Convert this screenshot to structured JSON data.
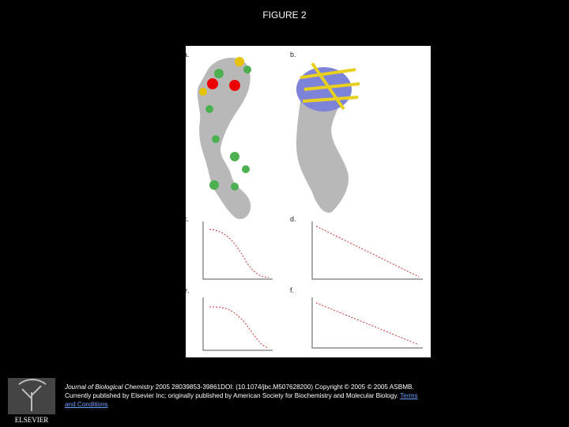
{
  "title": "FIGURE 2",
  "figure": {
    "panels": [
      {
        "label": "a."
      },
      {
        "label": "b."
      },
      {
        "label": "c."
      },
      {
        "label": "d."
      },
      {
        "label": "e."
      },
      {
        "label": "f."
      }
    ]
  },
  "footer": {
    "journal": "Journal of Biological Chemistry",
    "citation": " 2005 28039853-39861DOI: (10.1074/jbc.M507628200)",
    "copyright": " Copyright © 2005 © 2005 ASBMB. Currently published by Elsevier Inc; originally published by American Society for Biochemistry and Molecular Biology.",
    "link": "Terms and Conditions"
  },
  "logo": "ELSEVIER"
}
